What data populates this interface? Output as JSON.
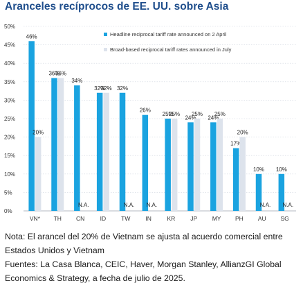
{
  "header": {
    "title": "Aranceles recíprocos de EE. UU. sobre Asia"
  },
  "colors": {
    "headline": "#1aa3e0",
    "broad": "#dde3ec",
    "title": "#1f4e8c",
    "grid": "#cfd6df"
  },
  "chart_data": {
    "type": "bar",
    "categories": [
      "VN*",
      "TH",
      "CN",
      "ID",
      "TW",
      "IN",
      "KR",
      "JP",
      "MY",
      "PH",
      "AU",
      "SG"
    ],
    "series": [
      {
        "name": "Headline reciprocal tariff rate announced on 2 April",
        "values": [
          46,
          36,
          34,
          32,
          32,
          26,
          25,
          24,
          24,
          17,
          10,
          10
        ],
        "labels": [
          "46%",
          "36%",
          "34%",
          "32%",
          "32%",
          "26%",
          "25%",
          "24%",
          "24%",
          "17%",
          "10%",
          "10%"
        ]
      },
      {
        "name": "Broad-based reciprocal tariff rates announced in July",
        "values": [
          20,
          36,
          null,
          32,
          null,
          null,
          25,
          25,
          25,
          20,
          null,
          null
        ],
        "labels": [
          "20%",
          "36%",
          "N.A.",
          "32%",
          "N.A.",
          "N.A.",
          "25%",
          "25%",
          "25%",
          "20%",
          "N.A.",
          "N.A."
        ]
      }
    ],
    "yticks": [
      "0%",
      "5%",
      "10%",
      "15%",
      "20%",
      "25%",
      "30%",
      "35%",
      "40%",
      "45%",
      "50%"
    ],
    "ylim": [
      0,
      50
    ],
    "grid": true,
    "legend_position": "top-right"
  },
  "notes": {
    "nota": "Nota: El arancel del 20% de Vietnam se ajusta al acuerdo comercial entre Estados Unidos y Vietnam",
    "fuentes": "Fuentes: La Casa Blanca, CEIC, Haver, Morgan Stanley, AllianzGI Global Economics & Strategy, a fecha de julio de 2025."
  }
}
